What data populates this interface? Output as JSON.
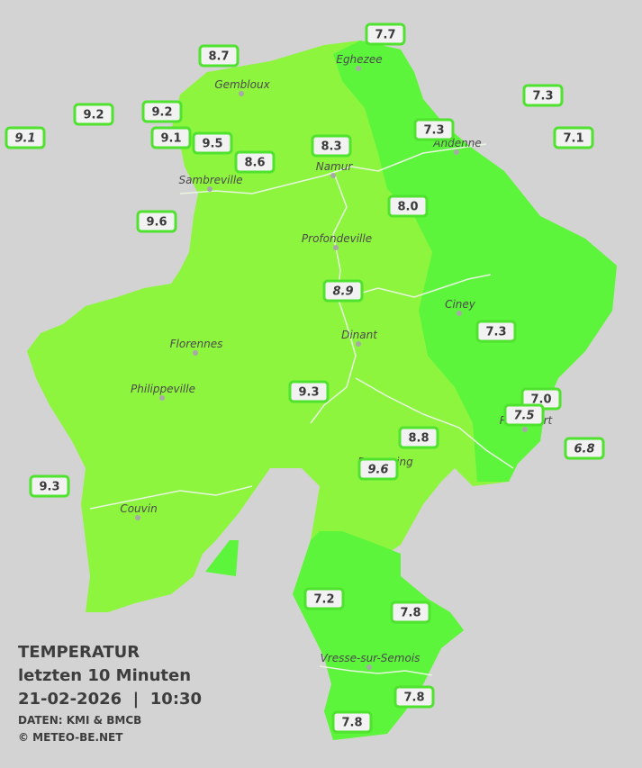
{
  "title": "TEMPERATUR",
  "subtitle": "letzten 10 Minuten",
  "datetime": "21-02-2026  |  10:30",
  "source": "DATEN: KMI & BMCB",
  "copyright": "© METEO-BE.NET",
  "cities": [
    "Eghezee",
    "Gembloux",
    "Andenne",
    "Namur",
    "Sambreville",
    "Profondeville",
    "Ciney",
    "Florennes",
    "Dinant",
    "Philippeville",
    "Rochefort",
    "Beauraing",
    "Couvin",
    "Vresse-sur-Semois"
  ],
  "stations": [
    "8.7",
    "7.7",
    "7.3",
    "9.2",
    "9.2",
    "9.1",
    "9.1",
    "9.5",
    "8.3",
    "7.3",
    "7.1",
    "8.6",
    "8.0",
    "9.6",
    "8.9",
    "7.3",
    "9.3",
    "7.0",
    "7.5",
    "6.8",
    "8.8",
    "9.6",
    "9.3",
    "7.2",
    "7.8",
    "7.8",
    "7.8"
  ]
}
